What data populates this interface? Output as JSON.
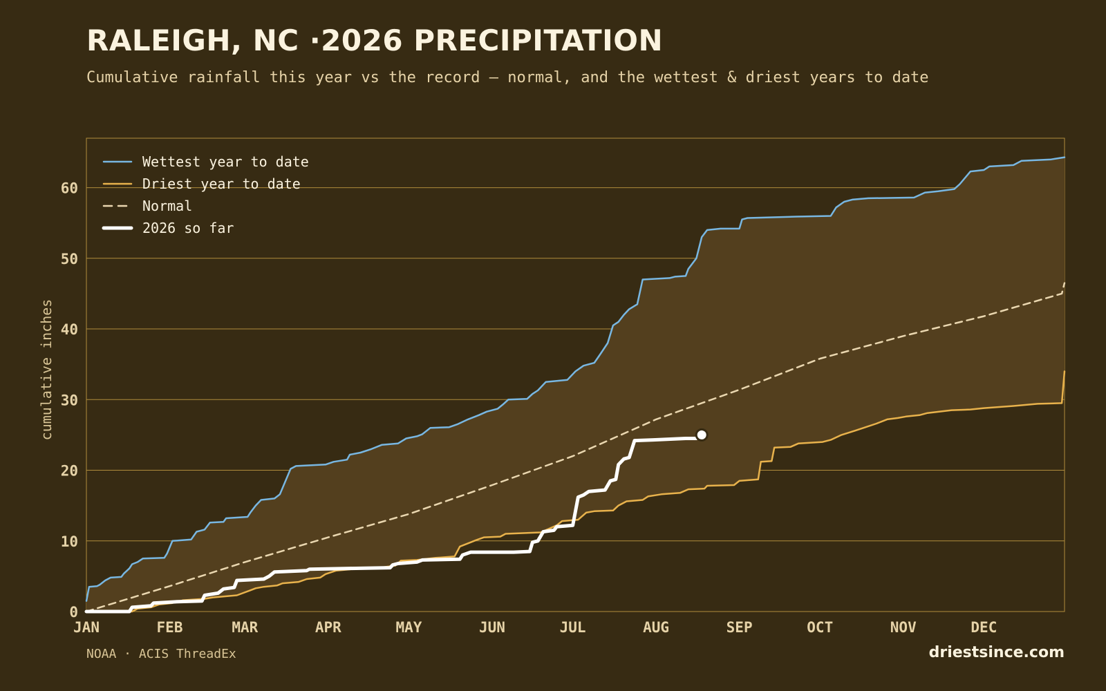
{
  "header": {
    "title": "RALEIGH, NC ·2026 PRECIPITATION",
    "subtitle": "Cumulative rainfall this year vs the record — normal, and the wettest & driest years to date"
  },
  "footer": {
    "source": "NOAA · ACIS ThreadEx",
    "site": "driestsince.com"
  },
  "colors": {
    "background": "#372b13",
    "band_fill": "#533f1e",
    "grid": "#b08d3c",
    "wettest": "#78b7e2",
    "driest": "#e8b24c",
    "normal": "#ead7b0",
    "current": "#ffffff"
  },
  "chart_data": {
    "type": "line",
    "title": "RALEIGH, NC ·2026 PRECIPITATION",
    "xlabel": "",
    "ylabel": "cumulative inches",
    "x_unit": "day of year",
    "xlim": [
      1,
      365
    ],
    "ylim": [
      0,
      67
    ],
    "y_ticks": [
      0,
      10,
      20,
      30,
      40,
      50,
      60
    ],
    "x_ticks": [
      {
        "label": "JAN",
        "day": 1
      },
      {
        "label": "FEB",
        "day": 32
      },
      {
        "label": "MAR",
        "day": 60
      },
      {
        "label": "APR",
        "day": 91
      },
      {
        "label": "MAY",
        "day": 121
      },
      {
        "label": "JUN",
        "day": 152
      },
      {
        "label": "JUL",
        "day": 182
      },
      {
        "label": "AUG",
        "day": 213
      },
      {
        "label": "SEP",
        "day": 244
      },
      {
        "label": "OCT",
        "day": 274
      },
      {
        "label": "NOV",
        "day": 305
      },
      {
        "label": "DEC",
        "day": 335
      }
    ],
    "grid": true,
    "legend_position": "top-left",
    "band": {
      "upper": "Wettest year to date",
      "lower": "Driest year to date"
    },
    "series": [
      {
        "name": "Wettest year to date",
        "style": "solid",
        "points": [
          [
            1,
            1.5
          ],
          [
            2,
            3.5
          ],
          [
            5,
            3.6
          ],
          [
            6,
            3.8
          ],
          [
            8,
            4.4
          ],
          [
            10,
            4.8
          ],
          [
            14,
            4.9
          ],
          [
            15,
            5.4
          ],
          [
            17,
            6.1
          ],
          [
            18,
            6.7
          ],
          [
            20,
            7.0
          ],
          [
            22,
            7.5
          ],
          [
            30,
            7.6
          ],
          [
            31,
            8.2
          ],
          [
            33,
            10.0
          ],
          [
            40,
            10.2
          ],
          [
            42,
            11.3
          ],
          [
            45,
            11.6
          ],
          [
            47,
            12.6
          ],
          [
            52,
            12.7
          ],
          [
            53,
            13.2
          ],
          [
            61,
            13.4
          ],
          [
            62,
            14.0
          ],
          [
            64,
            15.0
          ],
          [
            66,
            15.8
          ],
          [
            71,
            16.0
          ],
          [
            73,
            16.6
          ],
          [
            77,
            20.2
          ],
          [
            79,
            20.6
          ],
          [
            90,
            20.8
          ],
          [
            93,
            21.2
          ],
          [
            98,
            21.5
          ],
          [
            99,
            22.2
          ],
          [
            103,
            22.5
          ],
          [
            107,
            23.0
          ],
          [
            111,
            23.6
          ],
          [
            117,
            23.8
          ],
          [
            120,
            24.5
          ],
          [
            124,
            24.8
          ],
          [
            126,
            25.1
          ],
          [
            129,
            26.0
          ],
          [
            136,
            26.1
          ],
          [
            139,
            26.5
          ],
          [
            143,
            27.2
          ],
          [
            147,
            27.8
          ],
          [
            150,
            28.3
          ],
          [
            154,
            28.7
          ],
          [
            156,
            29.3
          ],
          [
            158,
            30.0
          ],
          [
            165,
            30.1
          ],
          [
            167,
            30.8
          ],
          [
            169,
            31.3
          ],
          [
            172,
            32.5
          ],
          [
            180,
            32.8
          ],
          [
            183,
            34.0
          ],
          [
            186,
            34.8
          ],
          [
            190,
            35.2
          ],
          [
            192,
            36.3
          ],
          [
            195,
            38.0
          ],
          [
            197,
            40.5
          ],
          [
            199,
            41.0
          ],
          [
            201,
            42.0
          ],
          [
            203,
            42.8
          ],
          [
            206,
            43.5
          ],
          [
            208,
            47.0
          ],
          [
            218,
            47.2
          ],
          [
            220,
            47.4
          ],
          [
            224,
            47.5
          ],
          [
            225,
            48.5
          ],
          [
            228,
            50.0
          ],
          [
            230,
            53.0
          ],
          [
            232,
            54.0
          ],
          [
            237,
            54.2
          ],
          [
            244,
            54.2
          ],
          [
            245,
            55.5
          ],
          [
            247,
            55.7
          ],
          [
            265,
            55.9
          ],
          [
            278,
            56.0
          ],
          [
            280,
            57.2
          ],
          [
            283,
            58.0
          ],
          [
            286,
            58.3
          ],
          [
            292,
            58.5
          ],
          [
            309,
            58.6
          ],
          [
            313,
            59.3
          ],
          [
            318,
            59.5
          ],
          [
            324,
            59.8
          ],
          [
            326,
            60.5
          ],
          [
            330,
            62.3
          ],
          [
            335,
            62.5
          ],
          [
            337,
            63.0
          ],
          [
            346,
            63.2
          ],
          [
            349,
            63.8
          ],
          [
            360,
            64.0
          ],
          [
            365,
            64.3
          ]
        ]
      },
      {
        "name": "Driest year to date",
        "style": "solid",
        "points": [
          [
            1,
            0
          ],
          [
            18,
            0
          ],
          [
            20,
            0.4
          ],
          [
            25,
            0.6
          ],
          [
            28,
            1.0
          ],
          [
            33,
            1.2
          ],
          [
            37,
            1.6
          ],
          [
            45,
            1.8
          ],
          [
            48,
            2.0
          ],
          [
            57,
            2.3
          ],
          [
            62,
            3.0
          ],
          [
            64,
            3.3
          ],
          [
            67,
            3.5
          ],
          [
            72,
            3.7
          ],
          [
            74,
            4.0
          ],
          [
            80,
            4.2
          ],
          [
            83,
            4.6
          ],
          [
            88,
            4.8
          ],
          [
            90,
            5.3
          ],
          [
            94,
            5.8
          ],
          [
            100,
            6.0
          ],
          [
            110,
            6.2
          ],
          [
            116,
            6.5
          ],
          [
            118,
            7.2
          ],
          [
            124,
            7.3
          ],
          [
            131,
            7.6
          ],
          [
            138,
            7.8
          ],
          [
            140,
            9.2
          ],
          [
            144,
            9.8
          ],
          [
            146,
            10.1
          ],
          [
            149,
            10.5
          ],
          [
            155,
            10.6
          ],
          [
            157,
            11.0
          ],
          [
            170,
            11.2
          ],
          [
            176,
            12.2
          ],
          [
            178,
            12.8
          ],
          [
            184,
            13.0
          ],
          [
            187,
            14.0
          ],
          [
            190,
            14.2
          ],
          [
            197,
            14.3
          ],
          [
            199,
            15.0
          ],
          [
            202,
            15.6
          ],
          [
            208,
            15.8
          ],
          [
            210,
            16.3
          ],
          [
            215,
            16.6
          ],
          [
            222,
            16.8
          ],
          [
            225,
            17.3
          ],
          [
            231,
            17.4
          ],
          [
            232,
            17.8
          ],
          [
            242,
            17.9
          ],
          [
            244,
            18.5
          ],
          [
            251,
            18.7
          ],
          [
            252,
            21.2
          ],
          [
            256,
            21.3
          ],
          [
            257,
            23.2
          ],
          [
            263,
            23.3
          ],
          [
            266,
            23.8
          ],
          [
            275,
            24.0
          ],
          [
            278,
            24.3
          ],
          [
            282,
            25.0
          ],
          [
            287,
            25.6
          ],
          [
            291,
            26.1
          ],
          [
            295,
            26.6
          ],
          [
            299,
            27.2
          ],
          [
            303,
            27.4
          ],
          [
            306,
            27.6
          ],
          [
            311,
            27.8
          ],
          [
            314,
            28.1
          ],
          [
            323,
            28.5
          ],
          [
            330,
            28.6
          ],
          [
            335,
            28.8
          ],
          [
            346,
            29.1
          ],
          [
            355,
            29.4
          ],
          [
            364,
            29.5
          ],
          [
            365,
            34.0
          ]
        ]
      },
      {
        "name": "Normal",
        "style": "dashed",
        "points": [
          [
            1,
            0
          ],
          [
            32,
            3.6
          ],
          [
            60,
            7.0
          ],
          [
            91,
            10.5
          ],
          [
            121,
            13.8
          ],
          [
            152,
            17.9
          ],
          [
            182,
            22.0
          ],
          [
            213,
            27.2
          ],
          [
            244,
            31.4
          ],
          [
            274,
            35.8
          ],
          [
            305,
            39.0
          ],
          [
            335,
            41.8
          ],
          [
            364,
            45.0
          ],
          [
            365,
            46.5
          ]
        ]
      },
      {
        "name": "2026 so far",
        "style": "thick",
        "points": [
          [
            1,
            0
          ],
          [
            17,
            0
          ],
          [
            18,
            0.6
          ],
          [
            25,
            0.8
          ],
          [
            26,
            1.2
          ],
          [
            35,
            1.4
          ],
          [
            44,
            1.5
          ],
          [
            45,
            2.3
          ],
          [
            50,
            2.6
          ],
          [
            52,
            3.2
          ],
          [
            56,
            3.4
          ],
          [
            57,
            4.4
          ],
          [
            67,
            4.6
          ],
          [
            69,
            5.0
          ],
          [
            71,
            5.6
          ],
          [
            83,
            5.8
          ],
          [
            84,
            6.0
          ],
          [
            99,
            6.1
          ],
          [
            114,
            6.2
          ],
          [
            115,
            6.6
          ],
          [
            117,
            6.8
          ],
          [
            124,
            7.0
          ],
          [
            126,
            7.3
          ],
          [
            140,
            7.4
          ],
          [
            141,
            8.0
          ],
          [
            144,
            8.4
          ],
          [
            160,
            8.4
          ],
          [
            166,
            8.5
          ],
          [
            167,
            9.8
          ],
          [
            169,
            10.0
          ],
          [
            171,
            11.3
          ],
          [
            175,
            11.5
          ],
          [
            176,
            12.0
          ],
          [
            182,
            12.2
          ],
          [
            184,
            16.2
          ],
          [
            186,
            16.5
          ],
          [
            188,
            17.0
          ],
          [
            194,
            17.2
          ],
          [
            196,
            18.5
          ],
          [
            198,
            18.7
          ],
          [
            199,
            20.8
          ],
          [
            201,
            21.6
          ],
          [
            203,
            21.8
          ],
          [
            205,
            24.2
          ],
          [
            212,
            24.3
          ],
          [
            224,
            24.5
          ],
          [
            228,
            24.5
          ]
        ]
      }
    ],
    "current_point": {
      "day": 230,
      "value": 25.0
    }
  }
}
